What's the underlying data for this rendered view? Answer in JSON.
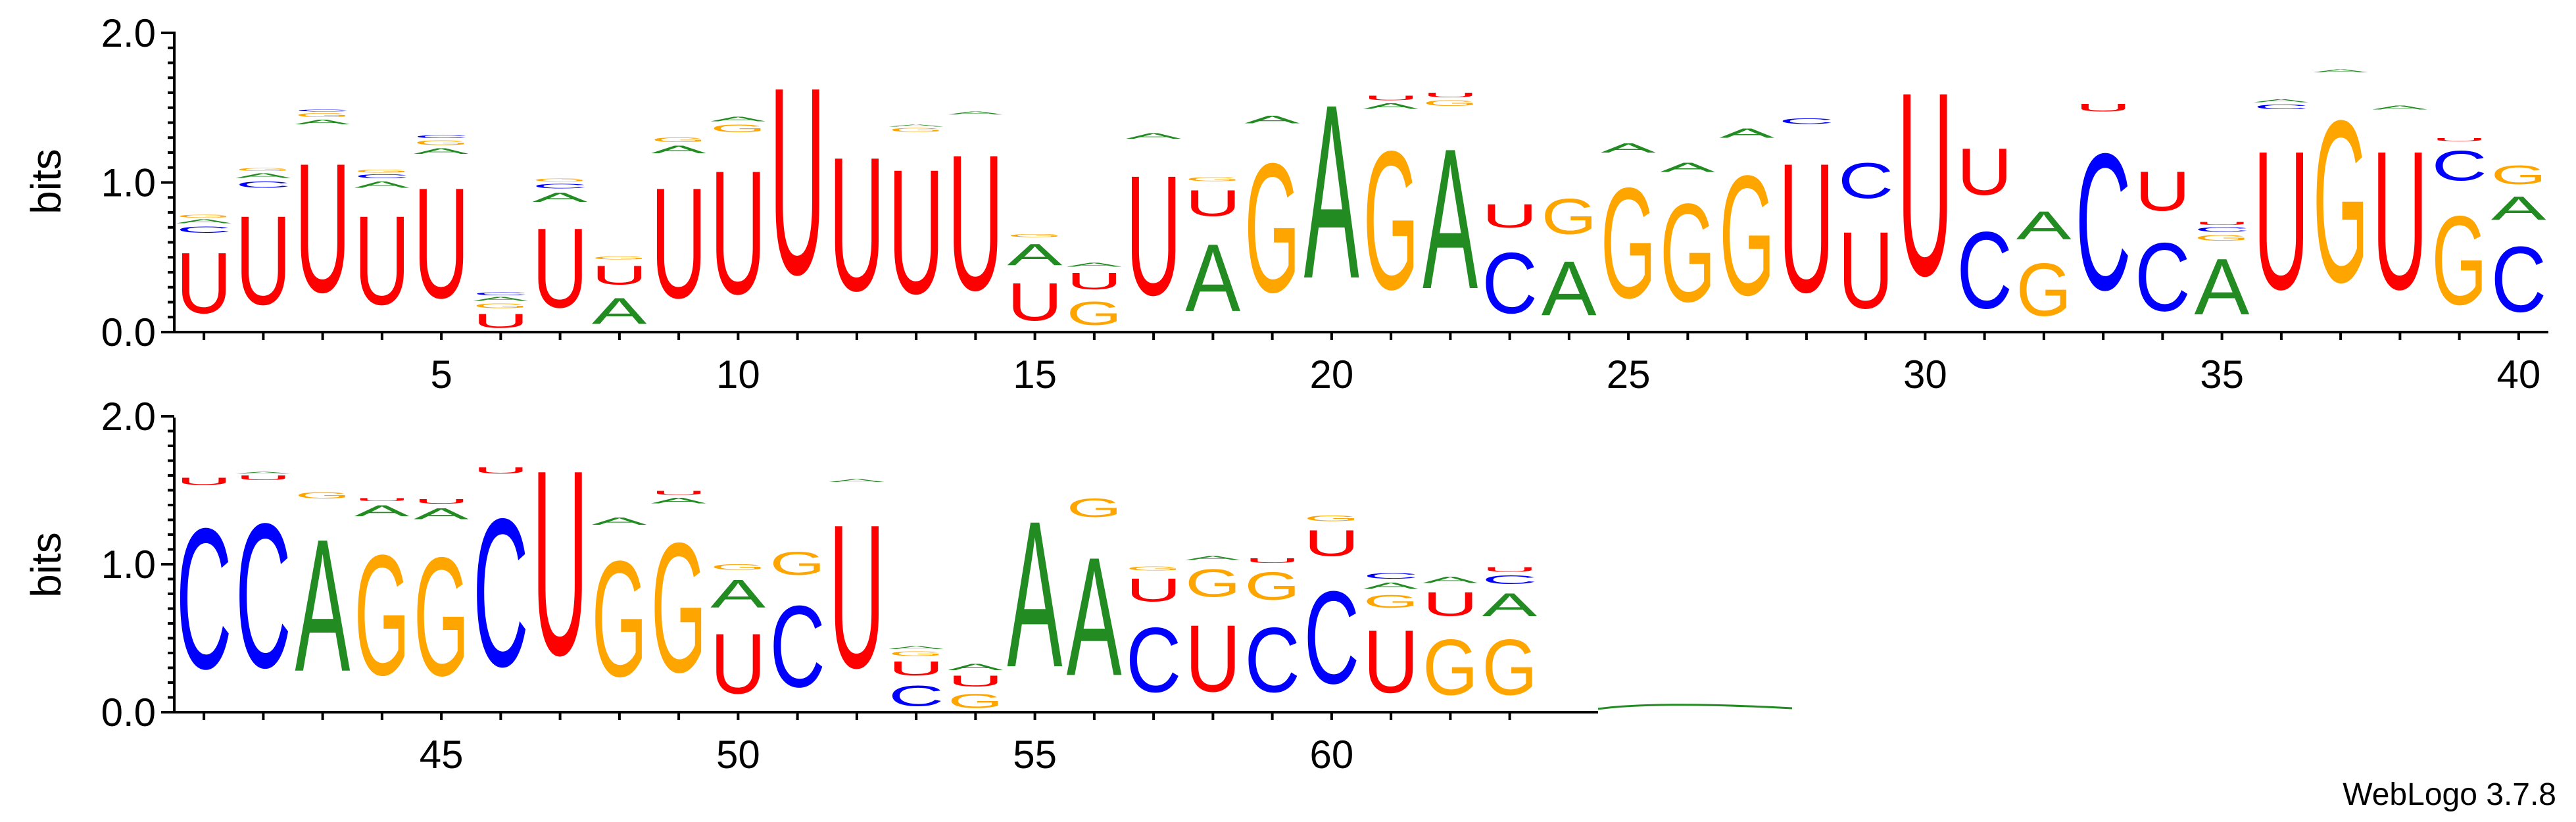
{
  "chart_data": {
    "type": "sequence_logo",
    "ylabel": "bits",
    "ylim": [
      0,
      2
    ],
    "yticks": [
      "0.0",
      "1.0",
      "2.0"
    ],
    "xticks": [
      5,
      10,
      15,
      20,
      25,
      30,
      35,
      40,
      45,
      50,
      55,
      60
    ],
    "colors": {
      "A": "#228B22",
      "C": "#0000FF",
      "G": "#FFA500",
      "U": "#FF0000"
    },
    "positions": [
      [
        [
          "U",
          0.65
        ],
        [
          "C",
          0.07
        ],
        [
          "A",
          0.04
        ],
        [
          "G",
          0.03
        ]
      ],
      [
        [
          "U",
          0.95
        ],
        [
          "C",
          0.07
        ],
        [
          "A",
          0.05
        ],
        [
          "G",
          0.03
        ]
      ],
      [
        [
          "U",
          1.38
        ],
        [
          "A",
          0.05
        ],
        [
          "G",
          0.04
        ],
        [
          "C",
          0.02
        ]
      ],
      [
        [
          "U",
          0.95
        ],
        [
          "A",
          0.07
        ],
        [
          "C",
          0.04
        ],
        [
          "G",
          0.03
        ]
      ],
      [
        [
          "U",
          1.18
        ],
        [
          "A",
          0.06
        ],
        [
          "G",
          0.05
        ],
        [
          "C",
          0.03
        ]
      ],
      [
        [
          "U",
          0.15
        ],
        [
          "G",
          0.05
        ],
        [
          "A",
          0.04
        ],
        [
          "C",
          0.03
        ]
      ],
      [
        [
          "U",
          0.85
        ],
        [
          "A",
          0.1
        ],
        [
          "C",
          0.05
        ],
        [
          "G",
          0.03
        ]
      ],
      [
        [
          "A",
          0.28
        ],
        [
          "U",
          0.2
        ],
        [
          "G",
          0.03
        ]
      ],
      [
        [
          "U",
          1.18
        ],
        [
          "A",
          0.08
        ],
        [
          "G",
          0.05
        ]
      ],
      [
        [
          "U",
          1.32
        ],
        [
          "G",
          0.08
        ],
        [
          "A",
          0.05
        ]
      ],
      [
        [
          "U",
          2.0
        ]
      ],
      [
        [
          "U",
          1.43
        ]
      ],
      [
        [
          "U",
          1.33
        ],
        [
          "G",
          0.04
        ],
        [
          "A",
          0.02
        ]
      ],
      [
        [
          "U",
          1.45
        ],
        [
          "A",
          0.03
        ]
      ],
      [
        [
          "U",
          0.4
        ],
        [
          "A",
          0.23
        ],
        [
          "G",
          0.03
        ]
      ],
      [
        [
          "G",
          0.25
        ],
        [
          "U",
          0.18
        ],
        [
          "A",
          0.04
        ]
      ],
      [
        [
          "U",
          1.28
        ],
        [
          "A",
          0.06
        ]
      ],
      [
        [
          "A",
          0.72
        ],
        [
          "U",
          0.28
        ],
        [
          "G",
          0.04
        ]
      ],
      [
        [
          "G",
          1.38
        ],
        [
          "A",
          0.08
        ]
      ],
      [
        [
          "A",
          1.86
        ]
      ],
      [
        [
          "G",
          1.48
        ],
        [
          "A",
          0.06
        ],
        [
          "U",
          0.05
        ]
      ],
      [
        [
          "A",
          1.5
        ],
        [
          "G",
          0.06
        ],
        [
          "U",
          0.05
        ]
      ],
      [
        [
          "C",
          0.65
        ],
        [
          "U",
          0.25
        ]
      ],
      [
        [
          "A",
          0.58
        ],
        [
          "G",
          0.38
        ]
      ],
      [
        [
          "G",
          1.18
        ],
        [
          "A",
          0.1
        ]
      ],
      [
        [
          "G",
          1.05
        ],
        [
          "A",
          0.1
        ]
      ],
      [
        [
          "G",
          1.28
        ],
        [
          "A",
          0.1
        ]
      ],
      [
        [
          "U",
          1.38
        ],
        [
          "C",
          0.06
        ]
      ],
      [
        [
          "U",
          0.82
        ],
        [
          "C",
          0.38
        ]
      ],
      [
        [
          "U",
          1.96
        ]
      ],
      [
        [
          "C",
          0.82
        ],
        [
          "U",
          0.5
        ]
      ],
      [
        [
          "G",
          0.56
        ],
        [
          "A",
          0.3
        ]
      ],
      [
        [
          "C",
          1.46
        ],
        [
          "U",
          0.08
        ]
      ],
      [
        [
          "C",
          0.73
        ],
        [
          "U",
          0.42
        ]
      ],
      [
        [
          "A",
          0.6
        ],
        [
          "G",
          0.06
        ],
        [
          "C",
          0.05
        ],
        [
          "U",
          0.03
        ]
      ],
      [
        [
          "U",
          1.48
        ],
        [
          "C",
          0.05
        ],
        [
          "A",
          0.03
        ]
      ],
      [
        [
          "G",
          1.73
        ],
        [
          "A",
          0.03
        ]
      ],
      [
        [
          "U",
          1.48
        ],
        [
          "A",
          0.04
        ]
      ],
      [
        [
          "G",
          0.95
        ],
        [
          "C",
          0.32
        ],
        [
          "U",
          0.03
        ]
      ],
      [
        [
          "C",
          0.7
        ],
        [
          "A",
          0.25
        ],
        [
          "G",
          0.2
        ]
      ],
      [
        [
          "C",
          1.52
        ],
        [
          "U",
          0.08
        ]
      ],
      [
        [
          "C",
          1.56
        ],
        [
          "U",
          0.05
        ],
        [
          "A",
          0.02
        ]
      ],
      [
        [
          "A",
          1.43
        ],
        [
          "G",
          0.07
        ]
      ],
      [
        [
          "G",
          1.3
        ],
        [
          "A",
          0.12
        ],
        [
          "U",
          0.03
        ]
      ],
      [
        [
          "G",
          1.28
        ],
        [
          "A",
          0.12
        ],
        [
          "U",
          0.05
        ]
      ],
      [
        [
          "C",
          1.6
        ],
        [
          "U",
          0.07
        ]
      ],
      [
        [
          "U",
          2.0
        ]
      ],
      [
        [
          "G",
          1.25
        ],
        [
          "A",
          0.08
        ]
      ],
      [
        [
          "G",
          1.4
        ],
        [
          "A",
          0.06
        ],
        [
          "U",
          0.04
        ]
      ],
      [
        [
          "U",
          0.65
        ],
        [
          "A",
          0.3
        ],
        [
          "G",
          0.06
        ]
      ],
      [
        [
          "C",
          0.88
        ],
        [
          "G",
          0.25
        ]
      ],
      [
        [
          "U",
          1.55
        ],
        [
          "A",
          0.03
        ]
      ],
      [
        [
          "C",
          0.22
        ],
        [
          "U",
          0.15
        ],
        [
          "G",
          0.05
        ],
        [
          "A",
          0.03
        ]
      ],
      [
        [
          "G",
          0.15
        ],
        [
          "U",
          0.12
        ],
        [
          "A",
          0.07
        ]
      ],
      [
        [
          "A",
          1.58
        ]
      ],
      [
        [
          "A",
          1.28
        ],
        [
          "G",
          0.2
        ]
      ],
      [
        [
          "C",
          0.7
        ],
        [
          "U",
          0.25
        ],
        [
          "G",
          0.04
        ]
      ],
      [
        [
          "U",
          0.72
        ],
        [
          "G",
          0.3
        ],
        [
          "A",
          0.04
        ]
      ],
      [
        [
          "C",
          0.7
        ],
        [
          "G",
          0.3
        ],
        [
          "U",
          0.05
        ]
      ],
      [
        [
          "C",
          1.0
        ],
        [
          "U",
          0.28
        ],
        [
          "G",
          0.06
        ]
      ],
      [
        [
          "U",
          0.68
        ],
        [
          "G",
          0.14
        ],
        [
          "A",
          0.07
        ],
        [
          "C",
          0.06
        ]
      ],
      [
        [
          "G",
          0.6
        ],
        [
          "U",
          0.26
        ],
        [
          "A",
          0.07
        ]
      ],
      [
        [
          "G",
          0.6
        ],
        [
          "A",
          0.25
        ],
        [
          "C",
          0.09
        ],
        [
          "U",
          0.05
        ]
      ]
    ]
  },
  "credit": "WebLogo 3.7.8"
}
